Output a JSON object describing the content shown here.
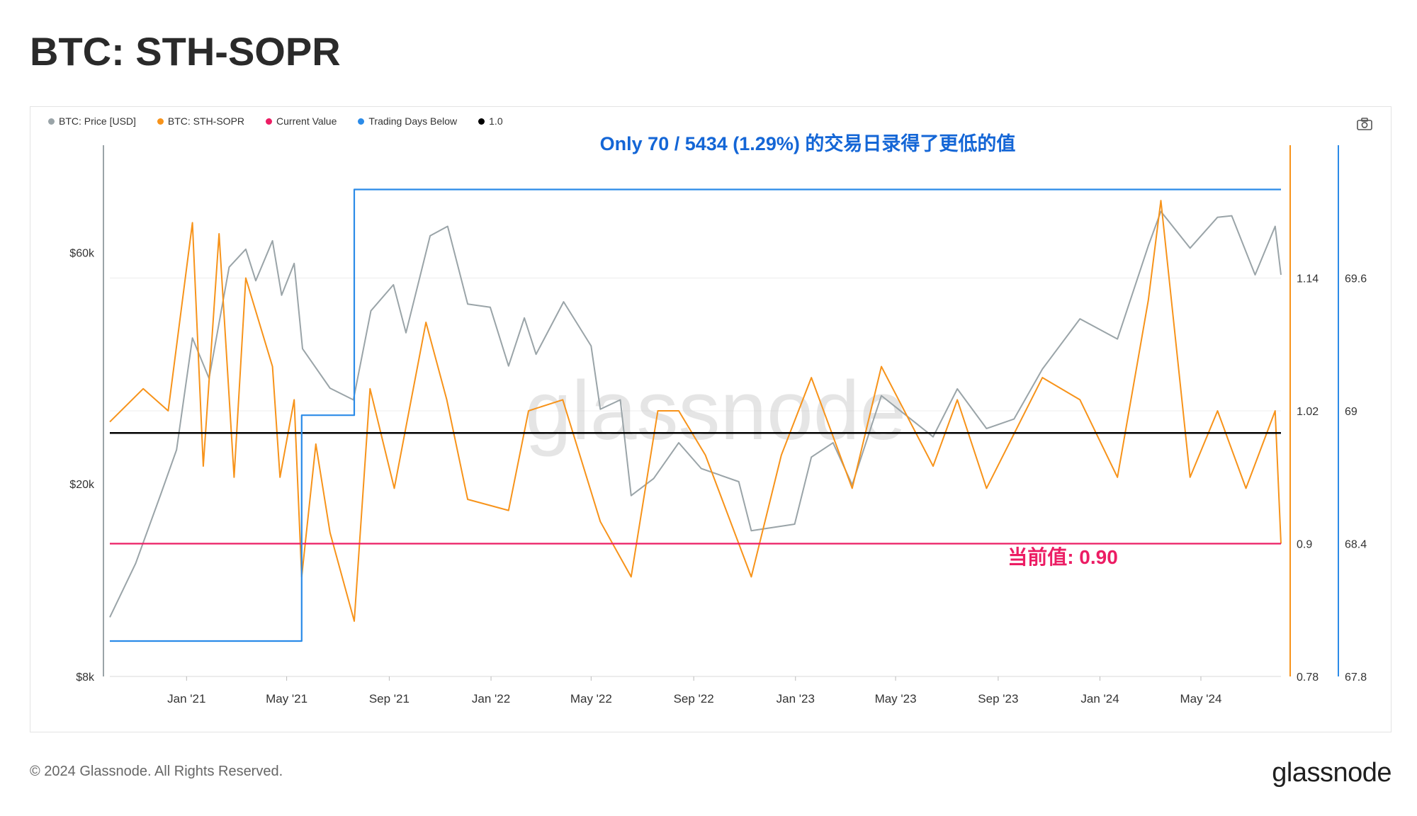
{
  "page": {
    "title": "BTC: STH-SOPR",
    "footer_copyright": "© 2024 Glassnode. All Rights Reserved.",
    "footer_logo": "glassnode",
    "watermark": "glassnode",
    "camera_icon": "camera-icon"
  },
  "legend": [
    {
      "label": "BTC: Price [USD]",
      "color": "#9aa4a8"
    },
    {
      "label": "BTC: STH-SOPR",
      "color": "#f7931a"
    },
    {
      "label": "Current Value",
      "color": "#ec1d64"
    },
    {
      "label": "Trading Days Below",
      "color": "#2b8be8"
    },
    {
      "label": "1.0",
      "color": "#000000"
    }
  ],
  "annotations": {
    "top": "Only 70 / 5434 (1.29%) 的交易日录得了更低的值",
    "current": "当前值: 0.90"
  },
  "chart_data": {
    "type": "line",
    "title": "BTC: STH-SOPR",
    "x_ticks": [
      "Jan '21",
      "May '21",
      "Sep '21",
      "Jan '22",
      "May '22",
      "Sep '22",
      "Jan '23",
      "May '23",
      "Sep '23",
      "Jan '24",
      "May '24"
    ],
    "x_range": [
      "2020-10-01",
      "2024-08-05"
    ],
    "left_axis": {
      "scale": "log",
      "ticks": [
        "$8k",
        "$20k",
        "$60k"
      ],
      "tick_values": [
        8000,
        20000,
        60000
      ],
      "range": [
        8000,
        100000
      ]
    },
    "right_axis_sopr": {
      "ticks": [
        "0.78",
        "0.9",
        "1.02",
        "1.14"
      ],
      "tick_values": [
        0.78,
        0.9,
        1.02,
        1.14
      ],
      "range": [
        0.78,
        1.26
      ]
    },
    "right_axis_days": {
      "ticks": [
        "67.8",
        "68.4",
        "69",
        "69.6"
      ],
      "tick_values": [
        67.8,
        68.4,
        69,
        69.6
      ],
      "range": [
        67.8,
        70.2
      ]
    },
    "grid": true,
    "legend_position": "top-left",
    "series": [
      {
        "name": "BTC: Price [USD]",
        "color": "#9aa4a8",
        "axis": "left",
        "points": [
          [
            "2020-10-01",
            10600
          ],
          [
            "2020-11-01",
            13700
          ],
          [
            "2020-12-01",
            19000
          ],
          [
            "2020-12-20",
            23500
          ],
          [
            "2021-01-08",
            40000
          ],
          [
            "2021-01-28",
            33000
          ],
          [
            "2021-02-21",
            56000
          ],
          [
            "2021-03-13",
            61000
          ],
          [
            "2021-03-25",
            52500
          ],
          [
            "2021-04-14",
            63500
          ],
          [
            "2021-04-25",
            49000
          ],
          [
            "2021-05-10",
            57000
          ],
          [
            "2021-05-20",
            38000
          ],
          [
            "2021-06-22",
            31500
          ],
          [
            "2021-07-20",
            29800
          ],
          [
            "2021-08-10",
            45500
          ],
          [
            "2021-09-06",
            51500
          ],
          [
            "2021-09-21",
            41000
          ],
          [
            "2021-10-20",
            65000
          ],
          [
            "2021-11-10",
            68000
          ],
          [
            "2021-12-04",
            47000
          ],
          [
            "2021-12-31",
            46300
          ],
          [
            "2022-01-22",
            35000
          ],
          [
            "2022-02-10",
            44000
          ],
          [
            "2022-02-24",
            37000
          ],
          [
            "2022-03-29",
            47500
          ],
          [
            "2022-05-01",
            38500
          ],
          [
            "2022-05-12",
            28500
          ],
          [
            "2022-06-05",
            29800
          ],
          [
            "2022-06-18",
            18900
          ],
          [
            "2022-07-15",
            20500
          ],
          [
            "2022-08-14",
            24300
          ],
          [
            "2022-09-10",
            21500
          ],
          [
            "2022-10-25",
            20200
          ],
          [
            "2022-11-09",
            16000
          ],
          [
            "2022-12-31",
            16500
          ],
          [
            "2023-01-20",
            22700
          ],
          [
            "2023-02-15",
            24300
          ],
          [
            "2023-03-10",
            19900
          ],
          [
            "2023-04-14",
            30400
          ],
          [
            "2023-06-15",
            25000
          ],
          [
            "2023-07-14",
            31400
          ],
          [
            "2023-08-18",
            26000
          ],
          [
            "2023-09-20",
            27200
          ],
          [
            "2023-10-24",
            34500
          ],
          [
            "2023-12-08",
            43800
          ],
          [
            "2024-01-22",
            39800
          ],
          [
            "2024-02-28",
            62000
          ],
          [
            "2024-03-14",
            73000
          ],
          [
            "2024-04-18",
            61300
          ],
          [
            "2024-05-21",
            71000
          ],
          [
            "2024-06-07",
            71500
          ],
          [
            "2024-07-05",
            54000
          ],
          [
            "2024-07-29",
            68000
          ],
          [
            "2024-08-05",
            54000
          ]
        ]
      },
      {
        "name": "BTC: STH-SOPR",
        "color": "#f7931a",
        "axis": "right_sopr",
        "points": [
          [
            "2020-10-01",
            1.01
          ],
          [
            "2020-11-10",
            1.04
          ],
          [
            "2020-12-10",
            1.02
          ],
          [
            "2021-01-08",
            1.19
          ],
          [
            "2021-01-21",
            0.97
          ],
          [
            "2021-02-09",
            1.18
          ],
          [
            "2021-02-27",
            0.96
          ],
          [
            "2021-03-13",
            1.14
          ],
          [
            "2021-04-14",
            1.06
          ],
          [
            "2021-04-23",
            0.96
          ],
          [
            "2021-05-10",
            1.03
          ],
          [
            "2021-05-19",
            0.87
          ],
          [
            "2021-06-05",
            0.99
          ],
          [
            "2021-06-22",
            0.91
          ],
          [
            "2021-07-21",
            0.83
          ],
          [
            "2021-08-09",
            1.04
          ],
          [
            "2021-09-07",
            0.95
          ],
          [
            "2021-10-15",
            1.1
          ],
          [
            "2021-11-09",
            1.03
          ],
          [
            "2021-12-04",
            0.94
          ],
          [
            "2022-01-22",
            0.93
          ],
          [
            "2022-02-15",
            1.02
          ],
          [
            "2022-03-28",
            1.03
          ],
          [
            "2022-05-12",
            0.92
          ],
          [
            "2022-06-18",
            0.87
          ],
          [
            "2022-07-20",
            1.02
          ],
          [
            "2022-08-14",
            1.02
          ],
          [
            "2022-09-15",
            0.98
          ],
          [
            "2022-11-09",
            0.87
          ],
          [
            "2022-12-15",
            0.98
          ],
          [
            "2023-01-20",
            1.05
          ],
          [
            "2023-03-10",
            0.95
          ],
          [
            "2023-04-14",
            1.06
          ],
          [
            "2023-06-15",
            0.97
          ],
          [
            "2023-07-14",
            1.03
          ],
          [
            "2023-08-18",
            0.95
          ],
          [
            "2023-10-24",
            1.05
          ],
          [
            "2023-12-08",
            1.03
          ],
          [
            "2024-01-22",
            0.96
          ],
          [
            "2024-02-28",
            1.12
          ],
          [
            "2024-03-14",
            1.21
          ],
          [
            "2024-04-18",
            0.96
          ],
          [
            "2024-05-21",
            1.02
          ],
          [
            "2024-06-24",
            0.95
          ],
          [
            "2024-07-29",
            1.02
          ],
          [
            "2024-08-05",
            0.9
          ]
        ]
      },
      {
        "name": "Current Value",
        "color": "#ec1d64",
        "axis": "right_sopr",
        "value": 0.9
      },
      {
        "name": "1.0",
        "color": "#000000",
        "axis": "right_sopr",
        "value": 1.0
      },
      {
        "name": "Trading Days Below",
        "color": "#2b8be8",
        "axis": "right_days",
        "points": [
          [
            "2020-10-01",
            67.96
          ],
          [
            "2021-05-19",
            67.96
          ],
          [
            "2021-05-19",
            68.98
          ],
          [
            "2021-07-21",
            68.98
          ],
          [
            "2021-07-21",
            70.0
          ],
          [
            "2024-08-05",
            70.0
          ]
        ]
      }
    ]
  }
}
